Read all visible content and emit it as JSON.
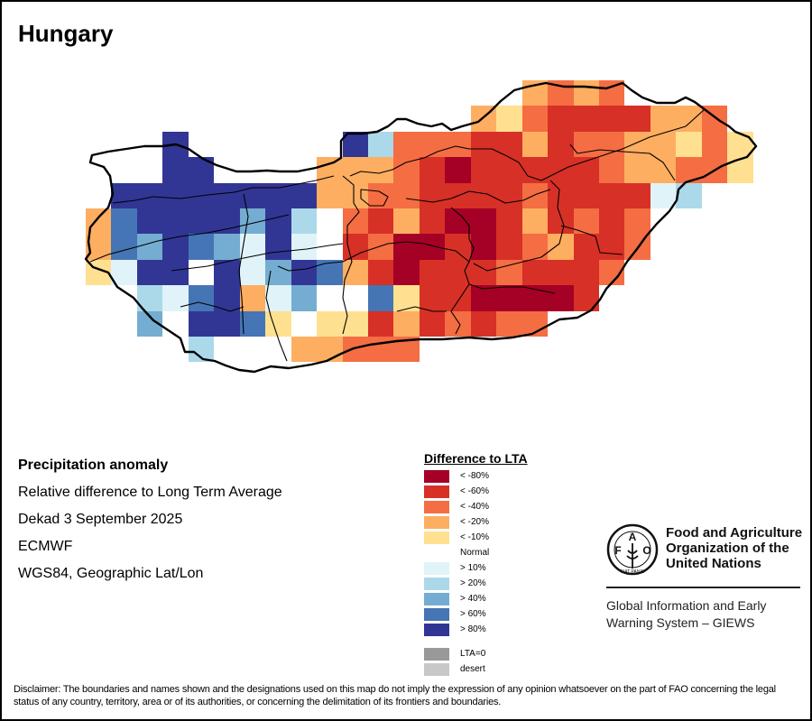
{
  "title": "Hungary",
  "info": {
    "heading": "Precipitation anomaly",
    "line1": "Relative difference to Long Term Average",
    "line2": "Dekad 3 September 2025",
    "line3": "ECMWF",
    "line4": "WGS84, Geographic Lat/Lon"
  },
  "legend": {
    "title": "Difference to LTA",
    "items": [
      {
        "key": "A",
        "label": "< -80%",
        "color": "#a50026"
      },
      {
        "key": "B",
        "label": "< -60%",
        "color": "#d73027"
      },
      {
        "key": "C",
        "label": "< -40%",
        "color": "#f46d43"
      },
      {
        "key": "D",
        "label": "< -20%",
        "color": "#fdae61"
      },
      {
        "key": "E",
        "label": "< -10%",
        "color": "#fee090"
      },
      {
        "key": "N",
        "label": "Normal",
        "color": "#ffffff"
      },
      {
        "key": "F",
        "label": "> 10%",
        "color": "#e0f3f8"
      },
      {
        "key": "G",
        "label": "> 20%",
        "color": "#abd9e9"
      },
      {
        "key": "H",
        "label": "> 40%",
        "color": "#74add1"
      },
      {
        "key": "I",
        "label": "> 60%",
        "color": "#4575b4"
      },
      {
        "key": "J",
        "label": "> 80%",
        "color": "#313695"
      },
      {
        "key": "Z",
        "label": "LTA=0",
        "color": "#999999"
      },
      {
        "key": "S",
        "label": "desert",
        "color": "#c8c8c8"
      }
    ]
  },
  "fao": {
    "emblem_letters": [
      "F",
      "A",
      "O"
    ],
    "motto": "FIAT PANIS",
    "name_line1": "Food and Agriculture",
    "name_line2": "Organization of the",
    "name_line3": "United Nations",
    "giews_line1": "Global Information and Early",
    "giews_line2": "Warning System – GIEWS"
  },
  "disclaimer": "Disclaimer: The boundaries and names shown and the designations used on this map do not imply the expression of any opinion whatsoever on the part of FAO concerning the legal status of any country, territory, area or of its authorities, or concerning the delimitation of its frontiers and boundaries.",
  "chart_data": {
    "type": "heatmap",
    "title": "Hungary — Precipitation anomaly, relative difference to Long Term Average, Dekad 3 September 2025 (ECMWF)",
    "legend_placement": "bottom-center",
    "class_codes": {
      "A": "< -80%",
      "B": "< -60%",
      "C": "< -40%",
      "D": "< -20%",
      "E": "< -10%",
      "N": "Normal",
      "F": "> 10%",
      "G": "> 20%",
      "H": "> 40%",
      "I": "> 60%",
      "J": "> 80%",
      ".": "no data"
    },
    "grid_rows_north_to_south": [
      ".................DCDC......",
      "...............DECBBBBDDC..",
      "...J......JGCCCBBDBCCDDECE.",
      "...JJ....DDDCBABBBBBCDDCCE.",
      ".JJJJJJJJDDCCBBBBCBBBBFG...",
      "DIJJJJHJGNCBDBAABDBCBC.....",
      "DIHJIHFJFNBCAABABCDBBC.....",
      "EFJJNJFHJIDBABBBCBBBC......",
      "..GFIJDFHNNIEBBAAAAB.......",
      "..HNJJIENEEBDBCBCC.........",
      "....GN..DDCCC..............",
      "..........................."
    ]
  }
}
